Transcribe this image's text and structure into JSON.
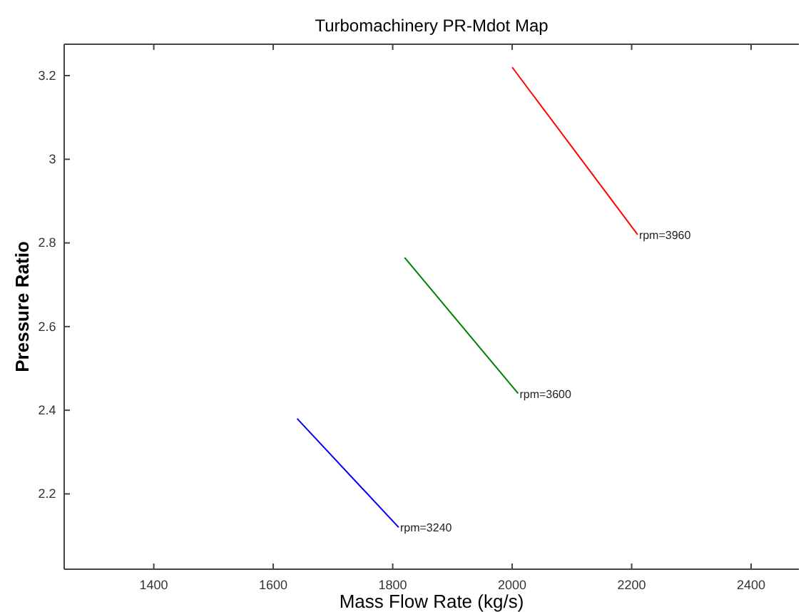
{
  "chart_data": {
    "type": "line",
    "title": "Turbomachinery PR-Mdot Map",
    "xlabel": "Mass Flow Rate (kg/s)",
    "ylabel": "Pressure Ratio",
    "xlim": [
      1250,
      2480
    ],
    "xticks": [
      1400,
      1600,
      1800,
      2000,
      2200,
      2400
    ],
    "ylim": [
      2.02,
      3.275
    ],
    "yticks": [
      2.2,
      2.4,
      2.6,
      2.8,
      3,
      3.2
    ],
    "grid": false,
    "marker": "none",
    "line_style": "solid",
    "series": [
      {
        "color": "#0000ff",
        "x": [
          1640,
          1810
        ],
        "values": [
          2.38,
          2.12
        ]
      },
      {
        "color": "#008000",
        "x": [
          1820,
          2010
        ],
        "values": [
          2.765,
          2.44
        ]
      },
      {
        "color": "#ff0000",
        "x": [
          2000,
          2210
        ],
        "values": [
          3.22,
          2.82
        ]
      }
    ],
    "annotations": [
      {
        "text": "rpm=3240",
        "x": 1810,
        "y": 2.12
      },
      {
        "text": "rpm=3600",
        "x": 2010,
        "y": 2.44
      },
      {
        "text": "rpm=3960",
        "x": 2210,
        "y": 2.82
      }
    ]
  }
}
